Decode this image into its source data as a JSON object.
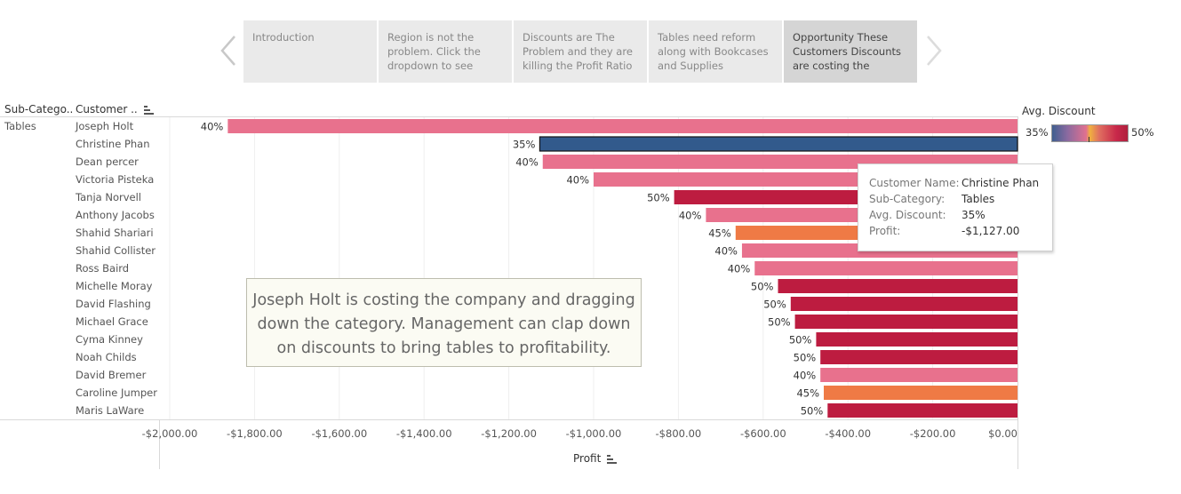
{
  "story": {
    "points": [
      {
        "label": "Introduction",
        "active": false
      },
      {
        "label": "Region is not the problem.  Click the dropdown to see",
        "active": false
      },
      {
        "label": "Discounts are The Problem and they are killing the Profit Ratio",
        "active": false
      },
      {
        "label": "Tables need reform along with Bookcases and Supplies",
        "active": false
      },
      {
        "label": "Opportunity These Customers  Discounts are costing the",
        "active": true
      }
    ]
  },
  "headers": {
    "subcategory": "Sub-Catego..",
    "customer": "Customer .."
  },
  "subcategory_value": "Tables",
  "legend": {
    "title": "Avg. Discount",
    "min_label": "35%",
    "max_label": "50%"
  },
  "tooltip": {
    "rows": [
      {
        "key": "Customer Name:",
        "value": "Christine Phan"
      },
      {
        "key": "Sub-Category:",
        "value": "Tables"
      },
      {
        "key": "Avg. Discount:",
        "value": "35%"
      },
      {
        "key": "Profit:",
        "value": "-$1,127.00"
      }
    ]
  },
  "annotation": {
    "lines": [
      "Joseph Holt is costing the company and dragging",
      "down the category.  Management can clap down",
      "on discounts to bring tables to profitability."
    ]
  },
  "colors": {
    "d35": "#325a8c",
    "d40": "#e8718d",
    "d45": "#ef7a45",
    "d50": "#bd1c40"
  },
  "chart_data": {
    "type": "bar",
    "orientation": "horizontal",
    "xlabel": "Profit",
    "xlim": [
      -2000,
      0
    ],
    "ticks": [
      {
        "value": -2000,
        "label": "-$2,000.00"
      },
      {
        "value": -1800,
        "label": "-$1,800.00"
      },
      {
        "value": -1600,
        "label": "-$1,600.00"
      },
      {
        "value": -1400,
        "label": "-$1,400.00"
      },
      {
        "value": -1200,
        "label": "-$1,200.00"
      },
      {
        "value": -1000,
        "label": "-$1,000.00"
      },
      {
        "value": -800,
        "label": "-$800.00"
      },
      {
        "value": -600,
        "label": "-$600.00"
      },
      {
        "value": -400,
        "label": "-$400.00"
      },
      {
        "value": -200,
        "label": "-$200.00"
      },
      {
        "value": 0,
        "label": "$0.00"
      }
    ],
    "color_by": "Avg. Discount",
    "highlighted": "Christine Phan",
    "rows": [
      {
        "customer": "Joseph Holt",
        "profit": -1863,
        "discount": "40%"
      },
      {
        "customer": "Christine Phan",
        "profit": -1127,
        "discount": "35%"
      },
      {
        "customer": "Dean percer",
        "profit": -1120,
        "discount": "40%"
      },
      {
        "customer": "Victoria Pisteka",
        "profit": -1000,
        "discount": "40%"
      },
      {
        "customer": "Tanja Norvell",
        "profit": -810,
        "discount": "50%"
      },
      {
        "customer": "Anthony Jacobs",
        "profit": -735,
        "discount": "40%"
      },
      {
        "customer": "Shahid Shariari",
        "profit": -665,
        "discount": "45%"
      },
      {
        "customer": "Shahid Collister",
        "profit": -650,
        "discount": "40%"
      },
      {
        "customer": "Ross Baird",
        "profit": -620,
        "discount": "40%"
      },
      {
        "customer": "Michelle Moray",
        "profit": -565,
        "discount": "50%"
      },
      {
        "customer": "David Flashing",
        "profit": -535,
        "discount": "50%"
      },
      {
        "customer": "Michael Grace",
        "profit": -525,
        "discount": "50%"
      },
      {
        "customer": "Cyma Kinney",
        "profit": -475,
        "discount": "50%"
      },
      {
        "customer": "Noah Childs",
        "profit": -465,
        "discount": "50%"
      },
      {
        "customer": "David Bremer",
        "profit": -465,
        "discount": "40%"
      },
      {
        "customer": "Caroline Jumper",
        "profit": -457,
        "discount": "45%"
      },
      {
        "customer": "Maris LaWare",
        "profit": -448,
        "discount": "50%"
      }
    ]
  }
}
